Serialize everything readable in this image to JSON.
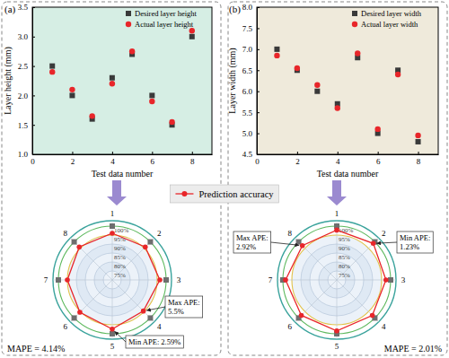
{
  "chart_data": [
    {
      "type": "scatter",
      "title": "(a)",
      "x_label": "Test data number",
      "y_label": "Layer height (mm)",
      "x": [
        1,
        2,
        3,
        4,
        5,
        6,
        7,
        8
      ],
      "xlim": [
        0,
        9
      ],
      "xticks": [
        0,
        2,
        4,
        6,
        8
      ],
      "ylim": [
        1.0,
        3.5
      ],
      "yticks": [
        {
          "value": 1.0,
          "label": "1.0"
        },
        1.5,
        {
          "value": 2.0,
          "label": "2.0"
        },
        2.5,
        {
          "value": 3.0,
          "label": "3.0"
        },
        3.5
      ],
      "legend": "upper right",
      "series": [
        {
          "name": "Desired layer height",
          "color": "#3a3a3a",
          "marker": "square",
          "values": [
            2.5,
            2.0,
            1.6,
            2.3,
            2.7,
            2.0,
            1.5,
            3.0
          ]
        },
        {
          "name": "Actual layer height",
          "color": "#e8262a",
          "marker": "circle",
          "values": [
            2.4,
            2.1,
            1.65,
            2.2,
            2.75,
            1.9,
            1.55,
            3.1
          ]
        }
      ]
    },
    {
      "type": "scatter",
      "title": "(b)",
      "x_label": "Test data number",
      "y_label": "Layer width (mm)",
      "x": [
        1,
        2,
        3,
        4,
        5,
        6,
        7,
        8
      ],
      "xlim": [
        0,
        9
      ],
      "xticks": [
        0,
        2,
        4,
        6,
        8
      ],
      "ylim": [
        4.5,
        8.0
      ],
      "yticks": [
        4.5,
        {
          "value": 5.0,
          "label": "5.0"
        },
        5.5,
        {
          "value": 6.0,
          "label": "6.0"
        },
        6.5,
        {
          "value": 7.0,
          "label": "7.0"
        },
        7.5,
        {
          "value": 8.0,
          "label": "8.0"
        }
      ],
      "legend": "upper right",
      "series": [
        {
          "name": "Desired layer width",
          "color": "#3a3a3a",
          "marker": "square",
          "values": [
            7.0,
            6.5,
            6.0,
            5.7,
            6.8,
            5.0,
            6.5,
            4.8
          ]
        },
        {
          "name": "Actual layer width",
          "color": "#e8262a",
          "marker": "circle",
          "values": [
            6.85,
            6.55,
            6.15,
            5.6,
            6.9,
            5.1,
            6.4,
            4.95
          ]
        }
      ]
    },
    {
      "type": "radar",
      "categories": [
        "1",
        "2",
        "3",
        "4",
        "5",
        "6",
        "7",
        "8"
      ],
      "ylim": [
        70,
        103
      ],
      "yticks": [
        {
          "value": 75,
          "label": "75%"
        },
        {
          "value": 80,
          "label": "80%"
        },
        {
          "value": 85,
          "label": "85%"
        },
        {
          "value": 90,
          "label": "90%"
        },
        {
          "value": 95,
          "label": "95%"
        },
        {
          "value": 100,
          "label": "100%"
        }
      ],
      "series": [
        {
          "color": "#6e6e6e",
          "marker": "square",
          "values": [
            100,
            100,
            100,
            100,
            100,
            100,
            100,
            100
          ]
        },
        {
          "name": "Prediction accuracy",
          "color": "#e8262a",
          "marker": "circle",
          "line_style": "solid",
          "values": [
            96.0,
            96.0,
            96.5,
            94.5,
            97.41,
            95.5,
            95.0,
            96.0
          ]
        }
      ],
      "annotations": [
        {
          "lines": [
            "Max APE:",
            "5.5%"
          ],
          "point": 3
        },
        {
          "lines": [
            "Min APE: 2.59%"
          ],
          "point": 4
        }
      ],
      "footnote": "MAPE = 4.14%"
    },
    {
      "type": "radar",
      "categories": [
        "1",
        "2",
        "3",
        "4",
        "5",
        "6",
        "7",
        "8"
      ],
      "ylim": [
        70,
        103
      ],
      "yticks": [
        {
          "value": 75,
          "label": "75%"
        },
        {
          "value": 80,
          "label": "80%"
        },
        {
          "value": 85,
          "label": "85%"
        },
        {
          "value": 90,
          "label": "90%"
        },
        {
          "value": 95,
          "label": "95%"
        },
        {
          "value": 100,
          "label": "100%"
        }
      ],
      "series": [
        {
          "color": "#6e6e6e",
          "marker": "square",
          "values": [
            100,
            100,
            100,
            100,
            100,
            100,
            100,
            100
          ]
        },
        {
          "color": "#e8262a",
          "marker": "circle",
          "line_style": "solid",
          "values": [
            97.8,
            98.77,
            97.4,
            98.0,
            98.4,
            97.9,
            98.5,
            97.08
          ]
        }
      ],
      "annotations": [
        {
          "lines": [
            "Max APE:",
            "2.92%"
          ],
          "point": 7
        },
        {
          "lines": [
            "Min APE:",
            "1.23%"
          ],
          "point": 1
        }
      ],
      "footnote": "MAPE = 2.01%"
    }
  ]
}
